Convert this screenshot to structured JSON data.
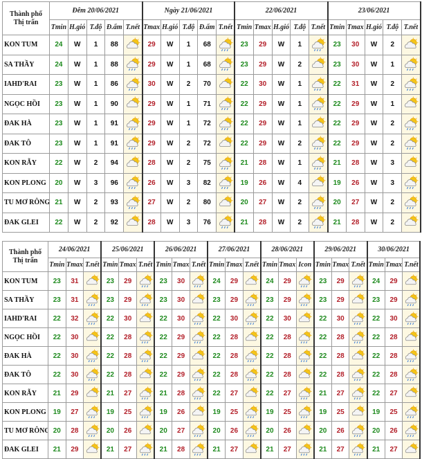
{
  "table1": {
    "corner": [
      "Thành phố",
      "Thị trấn"
    ],
    "dates": [
      "Đêm 20/06/2021",
      "Ngày 21/06/2021",
      "22/06/2021",
      "23/06/2021"
    ],
    "subheaders": [
      [
        "Tmin",
        "H.gió",
        "T.độ",
        "Đ.ẩm",
        "T.nết"
      ],
      [
        "Tmax",
        "H.gió",
        "T.độ",
        "Đ.ẩm",
        "T.nết"
      ],
      [
        "Tmin",
        "Tmax",
        "H.gió",
        "T.độ",
        "T.nết"
      ],
      [
        "Tmin",
        "Tmax",
        "H.gió",
        "T.độ",
        "T.nết"
      ]
    ],
    "rows": [
      {
        "city": "KON TUM",
        "days": [
          [
            24,
            "W",
            1,
            88
          ],
          [
            29,
            "W",
            1,
            68
          ],
          [
            23,
            29,
            "W",
            1
          ],
          [
            23,
            30,
            "W",
            2
          ]
        ]
      },
      {
        "city": "SA THẦY",
        "days": [
          [
            24,
            "W",
            1,
            88
          ],
          [
            29,
            "W",
            1,
            68
          ],
          [
            23,
            29,
            "W",
            2
          ],
          [
            23,
            30,
            "W",
            1
          ]
        ]
      },
      {
        "city": "IAHD'RAI",
        "days": [
          [
            23,
            "W",
            1,
            86
          ],
          [
            30,
            "W",
            2,
            70
          ],
          [
            22,
            30,
            "W",
            1
          ],
          [
            22,
            31,
            "W",
            2
          ]
        ]
      },
      {
        "city": "NGỌC HỒI",
        "days": [
          [
            23,
            "W",
            1,
            90
          ],
          [
            29,
            "W",
            1,
            71
          ],
          [
            22,
            29,
            "W",
            1
          ],
          [
            22,
            29,
            "W",
            1
          ]
        ]
      },
      {
        "city": "ĐAK HÀ",
        "days": [
          [
            23,
            "W",
            1,
            91
          ],
          [
            29,
            "W",
            1,
            72
          ],
          [
            22,
            29,
            "W",
            1
          ],
          [
            22,
            29,
            "W",
            2
          ]
        ]
      },
      {
        "city": "ĐAK TÔ",
        "days": [
          [
            23,
            "W",
            1,
            91
          ],
          [
            29,
            "W",
            2,
            72
          ],
          [
            22,
            29,
            "W",
            2
          ],
          [
            22,
            29,
            "W",
            2
          ]
        ]
      },
      {
        "city": "KON RẪY",
        "days": [
          [
            22,
            "W",
            2,
            94
          ],
          [
            28,
            "W",
            2,
            75
          ],
          [
            21,
            28,
            "W",
            1
          ],
          [
            21,
            28,
            "W",
            3
          ]
        ]
      },
      {
        "city": "KON PLONG",
        "days": [
          [
            20,
            "W",
            3,
            96
          ],
          [
            26,
            "W",
            3,
            82
          ],
          [
            19,
            26,
            "W",
            4
          ],
          [
            19,
            26,
            "W",
            3
          ]
        ]
      },
      {
        "city": "TU MƠ RÔNG",
        "days": [
          [
            21,
            "W",
            2,
            93
          ],
          [
            27,
            "W",
            2,
            80
          ],
          [
            20,
            27,
            "W",
            2
          ],
          [
            20,
            27,
            "W",
            2
          ]
        ]
      },
      {
        "city": "ĐAK GLEI",
        "days": [
          [
            22,
            "W",
            2,
            92
          ],
          [
            28,
            "W",
            3,
            76
          ],
          [
            21,
            28,
            "W",
            2
          ],
          [
            21,
            28,
            "W",
            2
          ]
        ]
      }
    ]
  },
  "table2": {
    "corner": [
      "Thành phố",
      "Thị trấn"
    ],
    "dates": [
      "24/06/2021",
      "25/06/2021",
      "26/06/2021",
      "27/06/2021",
      "28/06/2021",
      "29/06/2021",
      "30/06/2021"
    ],
    "subheaders": [
      [
        "Tmin",
        "Tmax",
        "T.nết"
      ],
      [
        "Tmin",
        "Tmax",
        "T.nết"
      ],
      [
        "Tmin",
        "Tmax",
        "T.nết"
      ],
      [
        "Tmin",
        "Tmax",
        "T.nết"
      ],
      [
        "Tmin",
        "Tmax",
        "Icon"
      ],
      [
        "Tmin",
        "Tmax",
        "T.nết"
      ],
      [
        "Tmin",
        "Tmax",
        "T.nết"
      ]
    ],
    "rows": [
      {
        "city": "KON TUM",
        "days": [
          [
            23,
            31
          ],
          [
            23,
            29
          ],
          [
            23,
            30
          ],
          [
            24,
            29
          ],
          [
            24,
            29
          ],
          [
            23,
            29
          ],
          [
            24,
            29
          ]
        ]
      },
      {
        "city": "SA THẦY",
        "days": [
          [
            23,
            31
          ],
          [
            23,
            29
          ],
          [
            23,
            30
          ],
          [
            23,
            29
          ],
          [
            23,
            29
          ],
          [
            23,
            29
          ],
          [
            23,
            29
          ]
        ]
      },
      {
        "city": "IAHD'RAI",
        "days": [
          [
            22,
            32
          ],
          [
            22,
            30
          ],
          [
            22,
            30
          ],
          [
            22,
            30
          ],
          [
            22,
            30
          ],
          [
            22,
            30
          ],
          [
            22,
            30
          ]
        ]
      },
      {
        "city": "NGỌC HỒI",
        "days": [
          [
            22,
            30
          ],
          [
            22,
            28
          ],
          [
            22,
            29
          ],
          [
            22,
            28
          ],
          [
            22,
            28
          ],
          [
            22,
            28
          ],
          [
            22,
            28
          ]
        ]
      },
      {
        "city": "ĐAK HÀ",
        "days": [
          [
            22,
            30
          ],
          [
            22,
            28
          ],
          [
            22,
            29
          ],
          [
            22,
            28
          ],
          [
            22,
            28
          ],
          [
            22,
            28
          ],
          [
            22,
            28
          ]
        ]
      },
      {
        "city": "ĐAK TÔ",
        "days": [
          [
            22,
            30
          ],
          [
            22,
            28
          ],
          [
            22,
            29
          ],
          [
            22,
            28
          ],
          [
            22,
            28
          ],
          [
            22,
            28
          ],
          [
            22,
            28
          ]
        ]
      },
      {
        "city": "KON RẪY",
        "days": [
          [
            21,
            29
          ],
          [
            21,
            27
          ],
          [
            21,
            28
          ],
          [
            22,
            27
          ],
          [
            22,
            27
          ],
          [
            21,
            27
          ],
          [
            22,
            27
          ]
        ]
      },
      {
        "city": "KON PLONG",
        "days": [
          [
            19,
            27
          ],
          [
            19,
            25
          ],
          [
            19,
            26
          ],
          [
            19,
            25
          ],
          [
            19,
            25
          ],
          [
            19,
            25
          ],
          [
            19,
            25
          ]
        ]
      },
      {
        "city": "TU MƠ RÔNG",
        "days": [
          [
            20,
            28
          ],
          [
            20,
            26
          ],
          [
            20,
            27
          ],
          [
            20,
            26
          ],
          [
            20,
            26
          ],
          [
            20,
            26
          ],
          [
            20,
            26
          ]
        ]
      },
      {
        "city": "ĐAK GLEI",
        "days": [
          [
            21,
            29
          ],
          [
            21,
            27
          ],
          [
            21,
            28
          ],
          [
            21,
            27
          ],
          [
            21,
            27
          ],
          [
            21,
            27
          ],
          [
            21,
            27
          ]
        ]
      }
    ]
  },
  "value_colors": {
    "Tmin": "#1e8a1e",
    "Tmax": "#b3202a"
  }
}
